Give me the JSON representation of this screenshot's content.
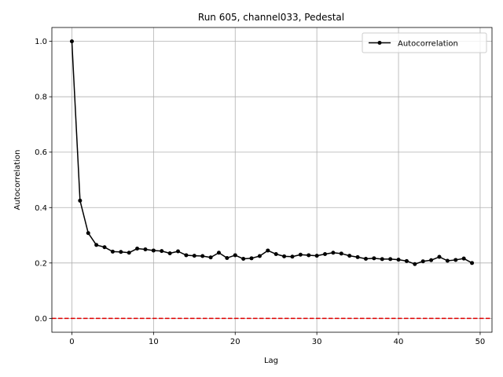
{
  "chart_data": {
    "type": "line",
    "title": "Run 605, channel033, Pedestal",
    "xlabel": "Lag",
    "ylabel": "Autocorrelation",
    "xlim": [
      -2.45,
      51.45
    ],
    "ylim": [
      -0.05,
      1.05
    ],
    "xticks": [
      0,
      10,
      20,
      30,
      40,
      50
    ],
    "yticks": [
      0.0,
      0.2,
      0.4,
      0.6,
      0.8,
      1.0
    ],
    "xtick_labels": [
      "0",
      "10",
      "20",
      "30",
      "40",
      "50"
    ],
    "ytick_labels": [
      "0.0",
      "0.2",
      "0.4",
      "0.6",
      "0.8",
      "1.0"
    ],
    "grid": true,
    "legend_position": "top-right",
    "series": [
      {
        "name": "Autocorrelation",
        "color": "#000000",
        "marker": "circle",
        "x": [
          0,
          1,
          2,
          3,
          4,
          5,
          6,
          7,
          8,
          9,
          10,
          11,
          12,
          13,
          14,
          15,
          16,
          17,
          18,
          19,
          20,
          21,
          22,
          23,
          24,
          25,
          26,
          27,
          28,
          29,
          30,
          31,
          32,
          33,
          34,
          35,
          36,
          37,
          38,
          39,
          40,
          41,
          42,
          43,
          44,
          45,
          46,
          47,
          48,
          49
        ],
        "y": [
          1.0,
          0.425,
          0.308,
          0.265,
          0.257,
          0.241,
          0.24,
          0.237,
          0.252,
          0.249,
          0.245,
          0.243,
          0.235,
          0.242,
          0.228,
          0.226,
          0.225,
          0.22,
          0.237,
          0.218,
          0.228,
          0.215,
          0.217,
          0.225,
          0.245,
          0.232,
          0.224,
          0.223,
          0.23,
          0.228,
          0.226,
          0.232,
          0.237,
          0.234,
          0.226,
          0.221,
          0.215,
          0.217,
          0.214,
          0.214,
          0.212,
          0.207,
          0.196,
          0.206,
          0.21,
          0.222,
          0.208,
          0.211,
          0.216,
          0.2
        ]
      }
    ],
    "reference_line": {
      "y": 0.0,
      "color": "#e00000",
      "style": "dashed"
    }
  }
}
